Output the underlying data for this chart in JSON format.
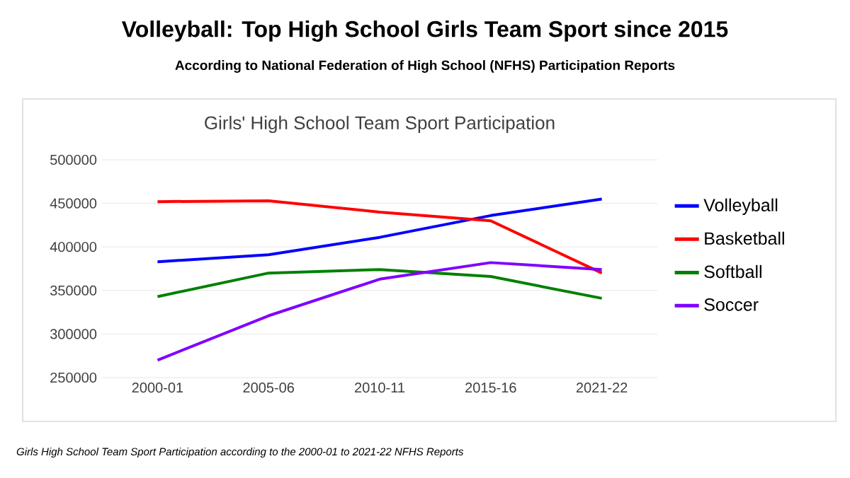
{
  "chart_data": {
    "type": "line",
    "title": "Volleyball: Top High School Girls Team Sport since 2015",
    "subtitle": "According to National Federation of High School (NFHS) Participation Reports",
    "annotations": [
      "Girls' High School Team Sport Participation",
      "Girls High School Team Sport Participation according to the 2000-01 to 2021-22 NFHS Reports"
    ],
    "categories": [
      "2000-01",
      "2005-06",
      "2010-11",
      "2015-16",
      "2021-22"
    ],
    "series": [
      {
        "name": "Volleyball",
        "color": "#0000ff",
        "values": [
          383000,
          391000,
          411000,
          436000,
          455000
        ]
      },
      {
        "name": "Basketball",
        "color": "#ff0000",
        "values": [
          452000,
          453000,
          440000,
          430000,
          370000
        ]
      },
      {
        "name": "Softball",
        "color": "#008000",
        "values": [
          343000,
          370000,
          374000,
          366000,
          341000
        ]
      },
      {
        "name": "Soccer",
        "color": "#8000ff",
        "values": [
          270000,
          321000,
          363000,
          382000,
          374000
        ]
      }
    ],
    "ylim": [
      250000,
      500000
    ],
    "yticks": [
      250000,
      300000,
      350000,
      400000,
      450000,
      500000
    ],
    "grid": "y",
    "legend": "right",
    "marker": "none",
    "line_style": "solid"
  }
}
